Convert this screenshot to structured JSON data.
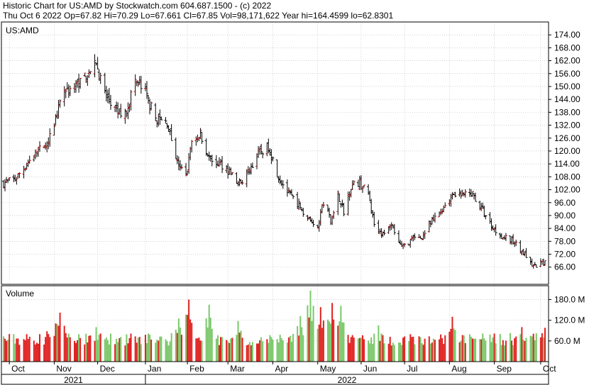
{
  "header": {
    "line1": "Historic Chart for US:AMD by Stockwatch.com 604.687.1500 - (c) 2022",
    "line2": "Thu Oct  6 2022   Op=67.82  Hi=70.29  Lo=67.661  Cl=67.85  Vol=98,171,622   Year hi=164.4599   lo=62.8301"
  },
  "colors": {
    "up": "#c00000",
    "down": "#000000",
    "vol_up": "#e02020",
    "vol_down": "#7ac86a",
    "grid": "#b8b8b8"
  },
  "chart_data": [
    {
      "type": "ohlc",
      "symbol_label": "US:AMD",
      "ylim": [
        58,
        180
      ],
      "y_ticks": [
        66,
        72,
        78,
        84,
        90,
        96,
        102,
        108,
        114,
        120,
        126,
        132,
        138,
        144,
        150,
        156,
        162,
        168,
        174
      ],
      "y_tick_labels": [
        "66.00",
        "72.00",
        "78.00",
        "84.00",
        "90.00",
        "96.00",
        "102.00",
        "108.00",
        "114.00",
        "120.00",
        "126.00",
        "132.00",
        "138.00",
        "144.00",
        "150.00",
        "156.00",
        "162.00",
        "168.00",
        "174.00"
      ],
      "x_range": [
        "2021-09-27",
        "2022-10-06"
      ],
      "months": [
        {
          "label": "Oct",
          "date": "2021-10-01"
        },
        {
          "label": "Nov",
          "date": "2021-11-01"
        },
        {
          "label": "Dec",
          "date": "2021-12-01"
        },
        {
          "label": "Jan",
          "date": "2022-01-03"
        },
        {
          "label": "Feb",
          "date": "2022-02-01"
        },
        {
          "label": "Mar",
          "date": "2022-03-01"
        },
        {
          "label": "Apr",
          "date": "2022-04-01"
        },
        {
          "label": "May",
          "date": "2022-05-02"
        },
        {
          "label": "Jun",
          "date": "2022-06-01"
        },
        {
          "label": "Jul",
          "date": "2022-07-01"
        },
        {
          "label": "Aug",
          "date": "2022-08-01"
        },
        {
          "label": "Sep",
          "date": "2022-09-01"
        },
        {
          "label": "Oct",
          "date": "2022-10-03"
        }
      ],
      "years": [
        {
          "label": "2021"
        },
        {
          "label": "2022"
        }
      ],
      "close_path": [
        {
          "date": "2021-09-27",
          "close": 105
        },
        {
          "date": "2021-10-05",
          "close": 107
        },
        {
          "date": "2021-10-12",
          "close": 113
        },
        {
          "date": "2021-10-20",
          "close": 120
        },
        {
          "date": "2021-10-27",
          "close": 122
        },
        {
          "date": "2021-11-03",
          "close": 137
        },
        {
          "date": "2021-11-08",
          "close": 148
        },
        {
          "date": "2021-11-15",
          "close": 150
        },
        {
          "date": "2021-11-22",
          "close": 155
        },
        {
          "date": "2021-11-30",
          "close": 160
        },
        {
          "date": "2021-12-07",
          "close": 145
        },
        {
          "date": "2021-12-14",
          "close": 138
        },
        {
          "date": "2021-12-20",
          "close": 137
        },
        {
          "date": "2021-12-27",
          "close": 153
        },
        {
          "date": "2022-01-03",
          "close": 147
        },
        {
          "date": "2022-01-10",
          "close": 135
        },
        {
          "date": "2022-01-18",
          "close": 133
        },
        {
          "date": "2022-01-25",
          "close": 115
        },
        {
          "date": "2022-01-31",
          "close": 108
        },
        {
          "date": "2022-02-04",
          "close": 125
        },
        {
          "date": "2022-02-10",
          "close": 128
        },
        {
          "date": "2022-02-17",
          "close": 115
        },
        {
          "date": "2022-02-24",
          "close": 114
        },
        {
          "date": "2022-03-03",
          "close": 110
        },
        {
          "date": "2022-03-08",
          "close": 104
        },
        {
          "date": "2022-03-15",
          "close": 110
        },
        {
          "date": "2022-03-22",
          "close": 119
        },
        {
          "date": "2022-03-29",
          "close": 122
        },
        {
          "date": "2022-04-05",
          "close": 108
        },
        {
          "date": "2022-04-12",
          "close": 100
        },
        {
          "date": "2022-04-19",
          "close": 95
        },
        {
          "date": "2022-04-26",
          "close": 88
        },
        {
          "date": "2022-05-02",
          "close": 86
        },
        {
          "date": "2022-05-06",
          "close": 96
        },
        {
          "date": "2022-05-11",
          "close": 88
        },
        {
          "date": "2022-05-16",
          "close": 100
        },
        {
          "date": "2022-05-20",
          "close": 92
        },
        {
          "date": "2022-05-25",
          "close": 104
        },
        {
          "date": "2022-05-31",
          "close": 105
        },
        {
          "date": "2022-06-06",
          "close": 100
        },
        {
          "date": "2022-06-10",
          "close": 86
        },
        {
          "date": "2022-06-16",
          "close": 81
        },
        {
          "date": "2022-06-22",
          "close": 85
        },
        {
          "date": "2022-06-29",
          "close": 75
        },
        {
          "date": "2022-07-06",
          "close": 79
        },
        {
          "date": "2022-07-13",
          "close": 80
        },
        {
          "date": "2022-07-20",
          "close": 87
        },
        {
          "date": "2022-07-27",
          "close": 93
        },
        {
          "date": "2022-08-03",
          "close": 100
        },
        {
          "date": "2022-08-10",
          "close": 99
        },
        {
          "date": "2022-08-17",
          "close": 100
        },
        {
          "date": "2022-08-24",
          "close": 92
        },
        {
          "date": "2022-08-31",
          "close": 84
        },
        {
          "date": "2022-09-07",
          "close": 80
        },
        {
          "date": "2022-09-14",
          "close": 78
        },
        {
          "date": "2022-09-21",
          "close": 73
        },
        {
          "date": "2022-09-28",
          "close": 66
        },
        {
          "date": "2022-10-03",
          "close": 68
        },
        {
          "date": "2022-10-06",
          "close": 67.85
        }
      ]
    },
    {
      "type": "bar",
      "title": "Volume",
      "ylim": [
        0,
        220
      ],
      "y_ticks": [
        60,
        120,
        180
      ],
      "y_tick_labels": [
        "60.0 M",
        "120.0 M",
        "180.0 M"
      ],
      "spikes": [
        {
          "date": "2021-10-27",
          "value": 88
        },
        {
          "date": "2021-11-05",
          "value": 142
        },
        {
          "date": "2021-11-30",
          "value": 100
        },
        {
          "date": "2022-01-26",
          "value": 125
        },
        {
          "date": "2022-02-02",
          "value": 180
        },
        {
          "date": "2022-02-16",
          "value": 165
        },
        {
          "date": "2022-03-08",
          "value": 118
        },
        {
          "date": "2022-04-20",
          "value": 132
        },
        {
          "date": "2022-04-27",
          "value": 206
        },
        {
          "date": "2022-05-04",
          "value": 158
        },
        {
          "date": "2022-05-12",
          "value": 170
        },
        {
          "date": "2022-05-18",
          "value": 162
        },
        {
          "date": "2022-06-13",
          "value": 105
        },
        {
          "date": "2022-08-03",
          "value": 130
        },
        {
          "date": "2022-09-20",
          "value": 100
        },
        {
          "date": "2022-10-06",
          "value": 98
        }
      ],
      "base_value": 72
    }
  ]
}
